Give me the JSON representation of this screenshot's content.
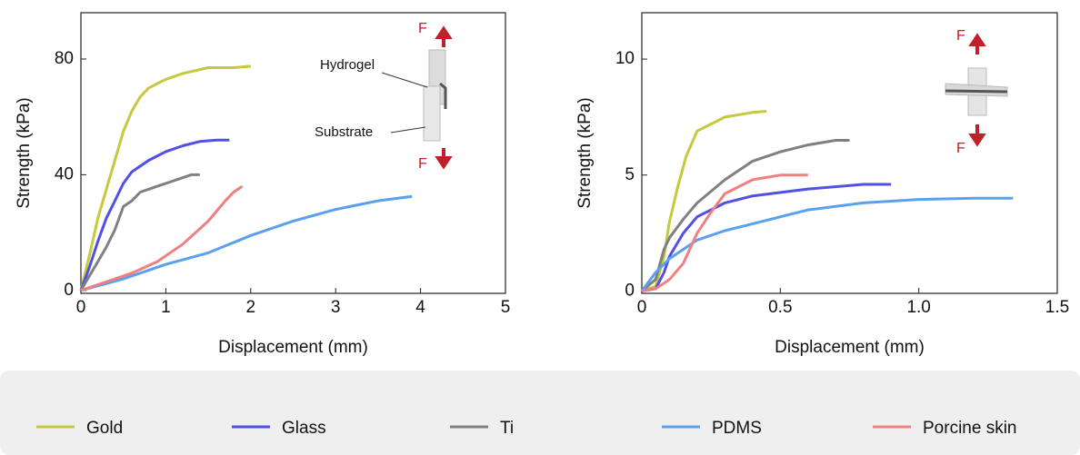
{
  "chart_data": [
    {
      "type": "line",
      "xlabel": "Displacement (mm)",
      "ylabel": "Strength (kPa)",
      "xlim": [
        0,
        5
      ],
      "xticks": [
        0,
        1,
        2,
        3,
        4,
        5
      ],
      "ylim": [
        -1,
        96
      ],
      "yticks": [
        0,
        40,
        80
      ],
      "annotations": [
        "F",
        "F",
        "Hydrogel",
        "Substrate"
      ],
      "legend": "bottom",
      "series": [
        {
          "name": "Gold",
          "color": "#c8c83c",
          "x": [
            0,
            0.1,
            0.2,
            0.3,
            0.4,
            0.5,
            0.6,
            0.7,
            0.8,
            1.0,
            1.2,
            1.5,
            1.8,
            2.0
          ],
          "values": [
            0,
            12,
            25,
            35,
            45,
            55,
            62,
            67,
            70,
            73,
            75,
            77,
            77,
            77.5
          ]
        },
        {
          "name": "Glass",
          "color": "#5050e6",
          "x": [
            0,
            0.1,
            0.2,
            0.3,
            0.4,
            0.5,
            0.6,
            0.8,
            1.0,
            1.2,
            1.4,
            1.6,
            1.75
          ],
          "values": [
            0,
            8,
            17,
            25,
            31,
            37,
            41,
            45,
            48,
            50,
            51.5,
            52,
            52
          ]
        },
        {
          "name": "Ti",
          "color": "#808080",
          "x": [
            0,
            0.1,
            0.2,
            0.3,
            0.4,
            0.5,
            0.6,
            0.7,
            0.9,
            1.1,
            1.3,
            1.4
          ],
          "values": [
            0,
            5,
            10,
            15,
            21,
            29,
            31,
            34,
            36,
            38,
            40,
            40
          ]
        },
        {
          "name": "PDMS",
          "color": "#5aa0ee",
          "x": [
            0,
            0.5,
            1,
            1.5,
            2,
            2.5,
            3,
            3.5,
            3.9
          ],
          "values": [
            0,
            4,
            9,
            13,
            19,
            24,
            28,
            31,
            32.5
          ]
        },
        {
          "name": "Porcine skin",
          "color": "#f08080",
          "x": [
            0,
            0.3,
            0.6,
            0.9,
            1.2,
            1.5,
            1.7,
            1.8,
            1.9
          ],
          "values": [
            0,
            3,
            6,
            10,
            16,
            24,
            31,
            34,
            36
          ]
        }
      ]
    },
    {
      "type": "line",
      "xlabel": "Displacement (mm)",
      "ylabel": "Strength (kPa)",
      "xlim": [
        0,
        1.5
      ],
      "xticks": [
        0,
        0.5,
        {
          "value": 1,
          "label": "1.0"
        },
        1.5
      ],
      "ylim": [
        -0.1,
        12
      ],
      "yticks": [
        0,
        5,
        10
      ],
      "annotations": [
        "F",
        "F"
      ],
      "series": [
        {
          "color": "#c8c83c",
          "x": [
            0,
            0.05,
            0.08,
            0.1,
            0.13,
            0.16,
            0.2,
            0.25,
            0.3,
            0.4,
            0.45
          ],
          "values": [
            0,
            0.2,
            1.5,
            3,
            4.5,
            5.8,
            6.9,
            7.2,
            7.5,
            7.7,
            7.75
          ]
        },
        {
          "color": "#5050e6",
          "x": [
            0,
            0.05,
            0.08,
            0.1,
            0.15,
            0.2,
            0.3,
            0.4,
            0.6,
            0.8,
            0.9
          ],
          "values": [
            0,
            0.1,
            0.8,
            1.5,
            2.5,
            3.2,
            3.8,
            4.1,
            4.4,
            4.6,
            4.6
          ]
        },
        {
          "color": "#808080",
          "x": [
            0,
            0.05,
            0.08,
            0.1,
            0.15,
            0.2,
            0.3,
            0.4,
            0.5,
            0.6,
            0.7,
            0.75
          ],
          "values": [
            0,
            0.5,
            1.8,
            2.3,
            3.1,
            3.8,
            4.8,
            5.6,
            6.0,
            6.3,
            6.5,
            6.5
          ]
        },
        {
          "color": "#5aa0ee",
          "x": [
            0,
            0.05,
            0.1,
            0.2,
            0.3,
            0.4,
            0.6,
            0.8,
            1.0,
            1.2,
            1.34
          ],
          "values": [
            0,
            0.8,
            1.4,
            2.2,
            2.6,
            2.9,
            3.5,
            3.8,
            3.95,
            4.0,
            4.0
          ]
        },
        {
          "color": "#f08080",
          "x": [
            0,
            0.05,
            0.1,
            0.15,
            0.2,
            0.25,
            0.3,
            0.4,
            0.5,
            0.6
          ],
          "values": [
            0,
            0.1,
            0.5,
            1.2,
            2.5,
            3.4,
            4.2,
            4.8,
            5.0,
            5.0
          ]
        }
      ]
    }
  ]
}
